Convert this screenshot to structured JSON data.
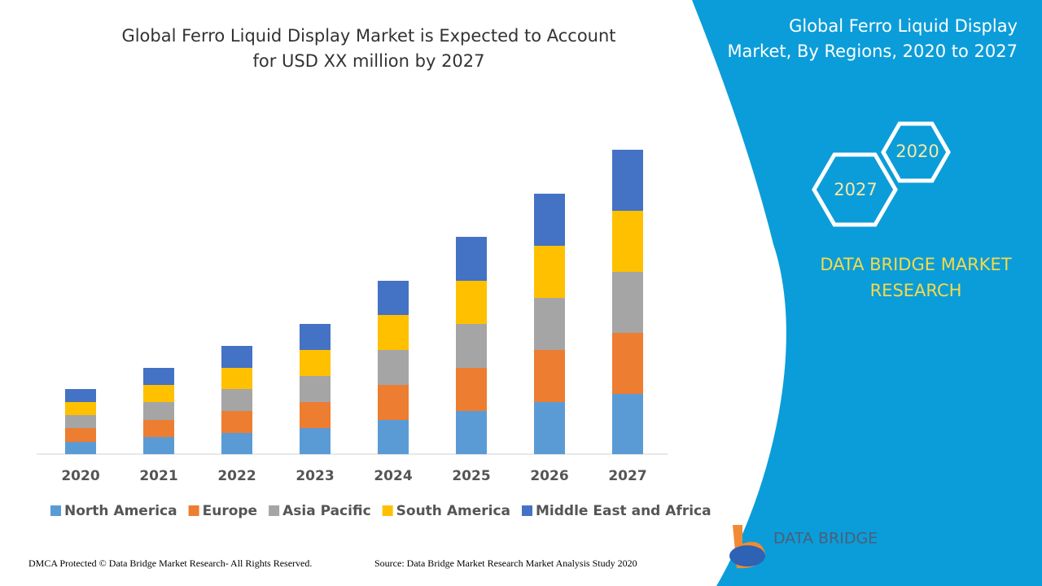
{
  "chart_data": {
    "type": "stacked-bar",
    "title": [
      "Global Ferro Liquid Display Market is Expected to Account",
      "for USD XX million by 2027"
    ],
    "categories": [
      "2020",
      "2021",
      "2022",
      "2023",
      "2024",
      "2025",
      "2026",
      "2027"
    ],
    "series": [
      {
        "name": "North America",
        "color": "#5b9bd5",
        "values": [
          15,
          21,
          26,
          32,
          42,
          53,
          64,
          74
        ]
      },
      {
        "name": "Europe",
        "color": "#ed7d31",
        "values": [
          17,
          21,
          27,
          32,
          43,
          53,
          64,
          75
        ]
      },
      {
        "name": "Asia Pacific",
        "color": "#a5a5a5",
        "values": [
          16,
          22,
          27,
          32,
          43,
          54,
          64,
          75
        ]
      },
      {
        "name": "South America",
        "color": "#ffc000",
        "values": [
          16,
          21,
          26,
          32,
          43,
          53,
          64,
          75
        ]
      },
      {
        "name": "Middle East and Africa",
        "color": "#4472c4",
        "values": [
          16,
          21,
          27,
          32,
          42,
          54,
          64,
          75
        ]
      }
    ],
    "legend": "bottom"
  },
  "panel": {
    "title": [
      "Global Ferro Liquid Display",
      "Market, By Regions, 2020 to 2027"
    ],
    "hexagons": [
      "2020",
      "2027"
    ],
    "brand": [
      "DATA BRIDGE MARKET",
      "RESEARCH"
    ]
  },
  "logo": "DATA BRIDGE",
  "footer": {
    "left": "DMCA Protected © Data Bridge Market Research- All Rights Reserved.",
    "right": "Source: Data Bridge Market Research Market Analysis Study 2020"
  }
}
